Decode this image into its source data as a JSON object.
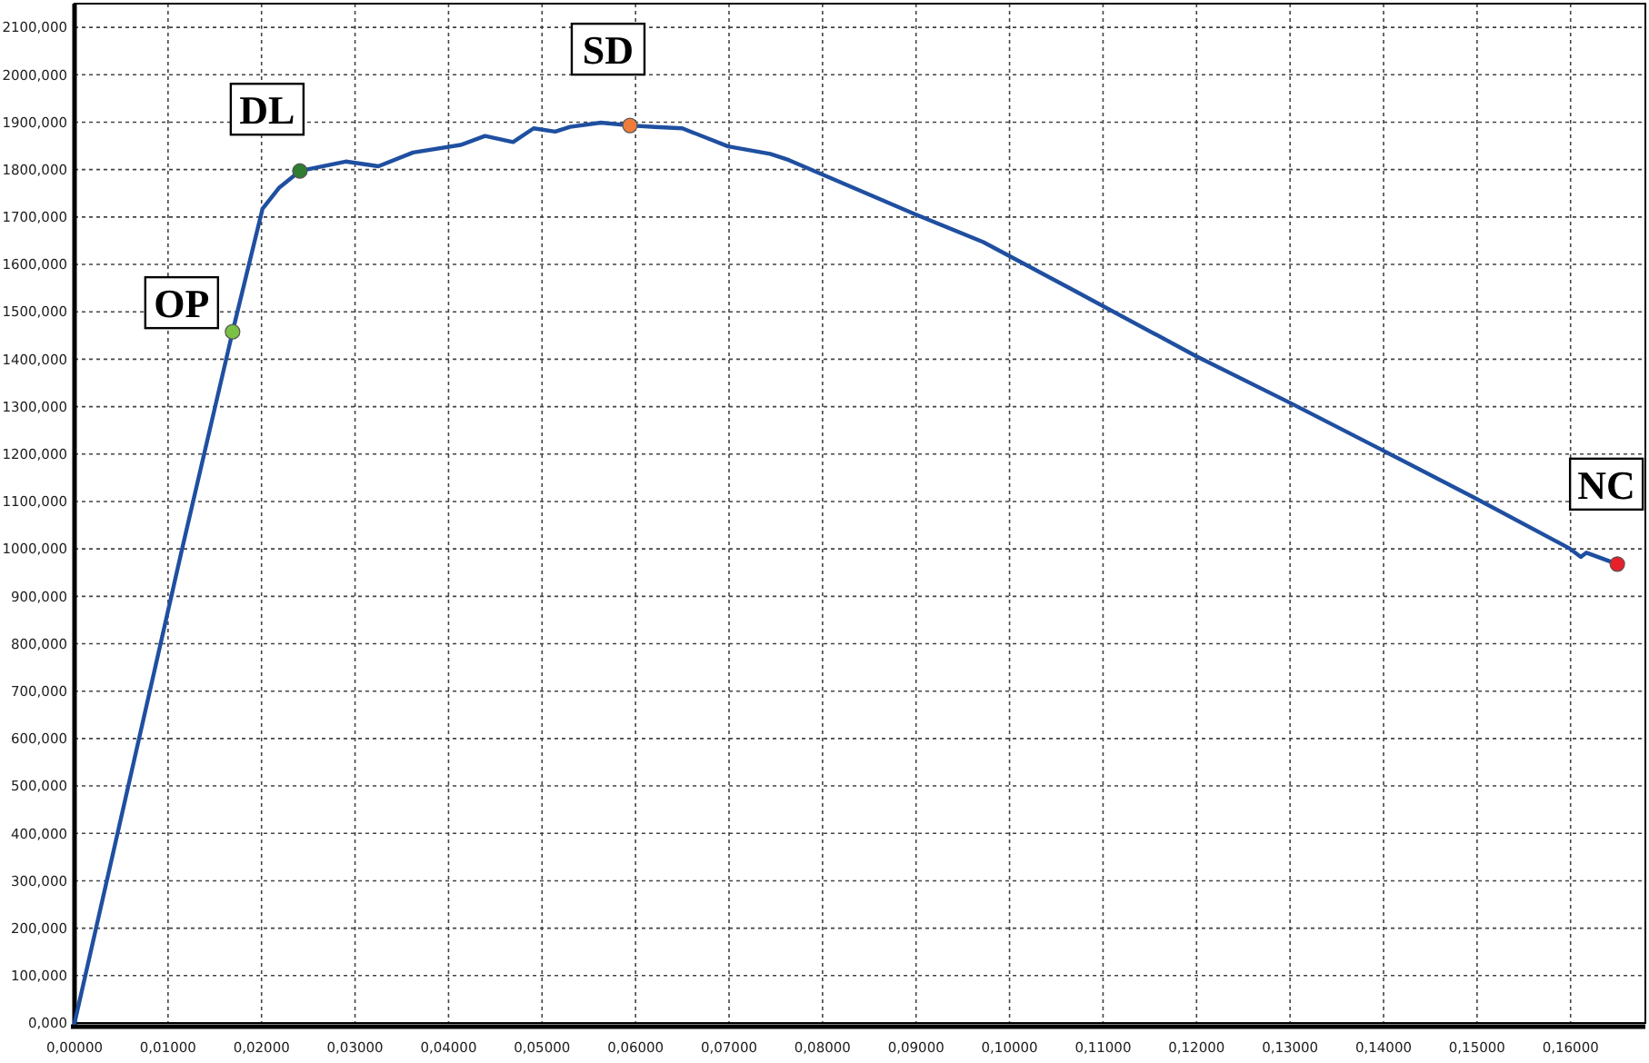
{
  "chart_data": {
    "type": "line",
    "grid": true,
    "line_style": "solid",
    "xlim": [
      0,
      0.168
    ],
    "ylim": [
      0,
      2150
    ],
    "xticks": [
      {
        "value": 0,
        "label": "0,00000"
      },
      {
        "value": 0.01,
        "label": "0,01000"
      },
      {
        "value": 0.02,
        "label": "0,02000"
      },
      {
        "value": 0.03,
        "label": "0,03000"
      },
      {
        "value": 0.04,
        "label": "0,04000"
      },
      {
        "value": 0.05,
        "label": "0,05000"
      },
      {
        "value": 0.06,
        "label": "0,06000"
      },
      {
        "value": 0.07,
        "label": "0,07000"
      },
      {
        "value": 0.08,
        "label": "0,08000"
      },
      {
        "value": 0.09,
        "label": "0,09000"
      },
      {
        "value": 0.1,
        "label": "0,10000"
      },
      {
        "value": 0.11,
        "label": "0,11000"
      },
      {
        "value": 0.12,
        "label": "0,12000"
      },
      {
        "value": 0.13,
        "label": "0,13000"
      },
      {
        "value": 0.14,
        "label": "0,14000"
      },
      {
        "value": 0.15,
        "label": "0,15000"
      },
      {
        "value": 0.16,
        "label": "0,16000"
      }
    ],
    "yticks": [
      {
        "value": 0,
        "label": "0,000"
      },
      {
        "value": 100,
        "label": "100,000"
      },
      {
        "value": 200,
        "label": "200,000"
      },
      {
        "value": 300,
        "label": "300,000"
      },
      {
        "value": 400,
        "label": "400,000"
      },
      {
        "value": 500,
        "label": "500,000"
      },
      {
        "value": 600,
        "label": "600,000"
      },
      {
        "value": 700,
        "label": "700,000"
      },
      {
        "value": 800,
        "label": "800,000"
      },
      {
        "value": 900,
        "label": "900,000"
      },
      {
        "value": 1000,
        "label": "1000,000"
      },
      {
        "value": 1100,
        "label": "1100,000"
      },
      {
        "value": 1200,
        "label": "1200,000"
      },
      {
        "value": 1300,
        "label": "1300,000"
      },
      {
        "value": 1400,
        "label": "1400,000"
      },
      {
        "value": 1500,
        "label": "1500,000"
      },
      {
        "value": 1600,
        "label": "1600,000"
      },
      {
        "value": 1700,
        "label": "1700,000"
      },
      {
        "value": 1800,
        "label": "1800,000"
      },
      {
        "value": 1900,
        "label": "1900,000"
      },
      {
        "value": 2000,
        "label": "2000,000"
      },
      {
        "value": 2100,
        "label": "2100,000"
      }
    ],
    "series": [
      {
        "marker": "none",
        "color": "#1f4fa0",
        "x": [
          0,
          0.0115,
          0.0169,
          0.0201,
          0.0219,
          0.0241,
          0.029,
          0.0325,
          0.0362,
          0.0413,
          0.0439,
          0.0469,
          0.0491,
          0.0514,
          0.053,
          0.0563,
          0.0594,
          0.0621,
          0.065,
          0.0699,
          0.0744,
          0.0764,
          0.09,
          0.0972,
          0.1069,
          0.1199,
          0.1299,
          0.14,
          0.1497,
          0.1598,
          0.1611,
          0.1617,
          0.165
        ],
        "values": [
          0,
          1000,
          1458,
          1717,
          1762,
          1797,
          1817,
          1807,
          1836,
          1852,
          1871,
          1858,
          1887,
          1880,
          1890,
          1899,
          1893,
          1890,
          1887,
          1849,
          1833,
          1820,
          1705,
          1647,
          1545,
          1407,
          1309,
          1207,
          1108,
          1002,
          983,
          992,
          968
        ]
      },
      {
        "type": "scatter",
        "marker": "circle",
        "color": "#7ac143",
        "x": [
          0.0169
        ],
        "values": [
          1458
        ]
      },
      {
        "type": "scatter",
        "marker": "circle",
        "color": "#2e7d32",
        "x": [
          0.0241
        ],
        "values": [
          1797
        ]
      },
      {
        "type": "scatter",
        "marker": "circle",
        "color": "#f07c3c",
        "x": [
          0.0594
        ],
        "values": [
          1893
        ]
      },
      {
        "type": "scatter",
        "marker": "circle",
        "color": "#e8202a",
        "x": [
          0.165
        ],
        "values": [
          968
        ]
      }
    ],
    "annotations": [
      {
        "text": "OP",
        "x": 0.0169,
        "y": 1458
      },
      {
        "text": "DL",
        "x": 0.0241,
        "y": 1797
      },
      {
        "text": "SD",
        "x": 0.0594,
        "y": 1893
      },
      {
        "text": "NC",
        "x": 0.165,
        "y": 968
      }
    ]
  }
}
